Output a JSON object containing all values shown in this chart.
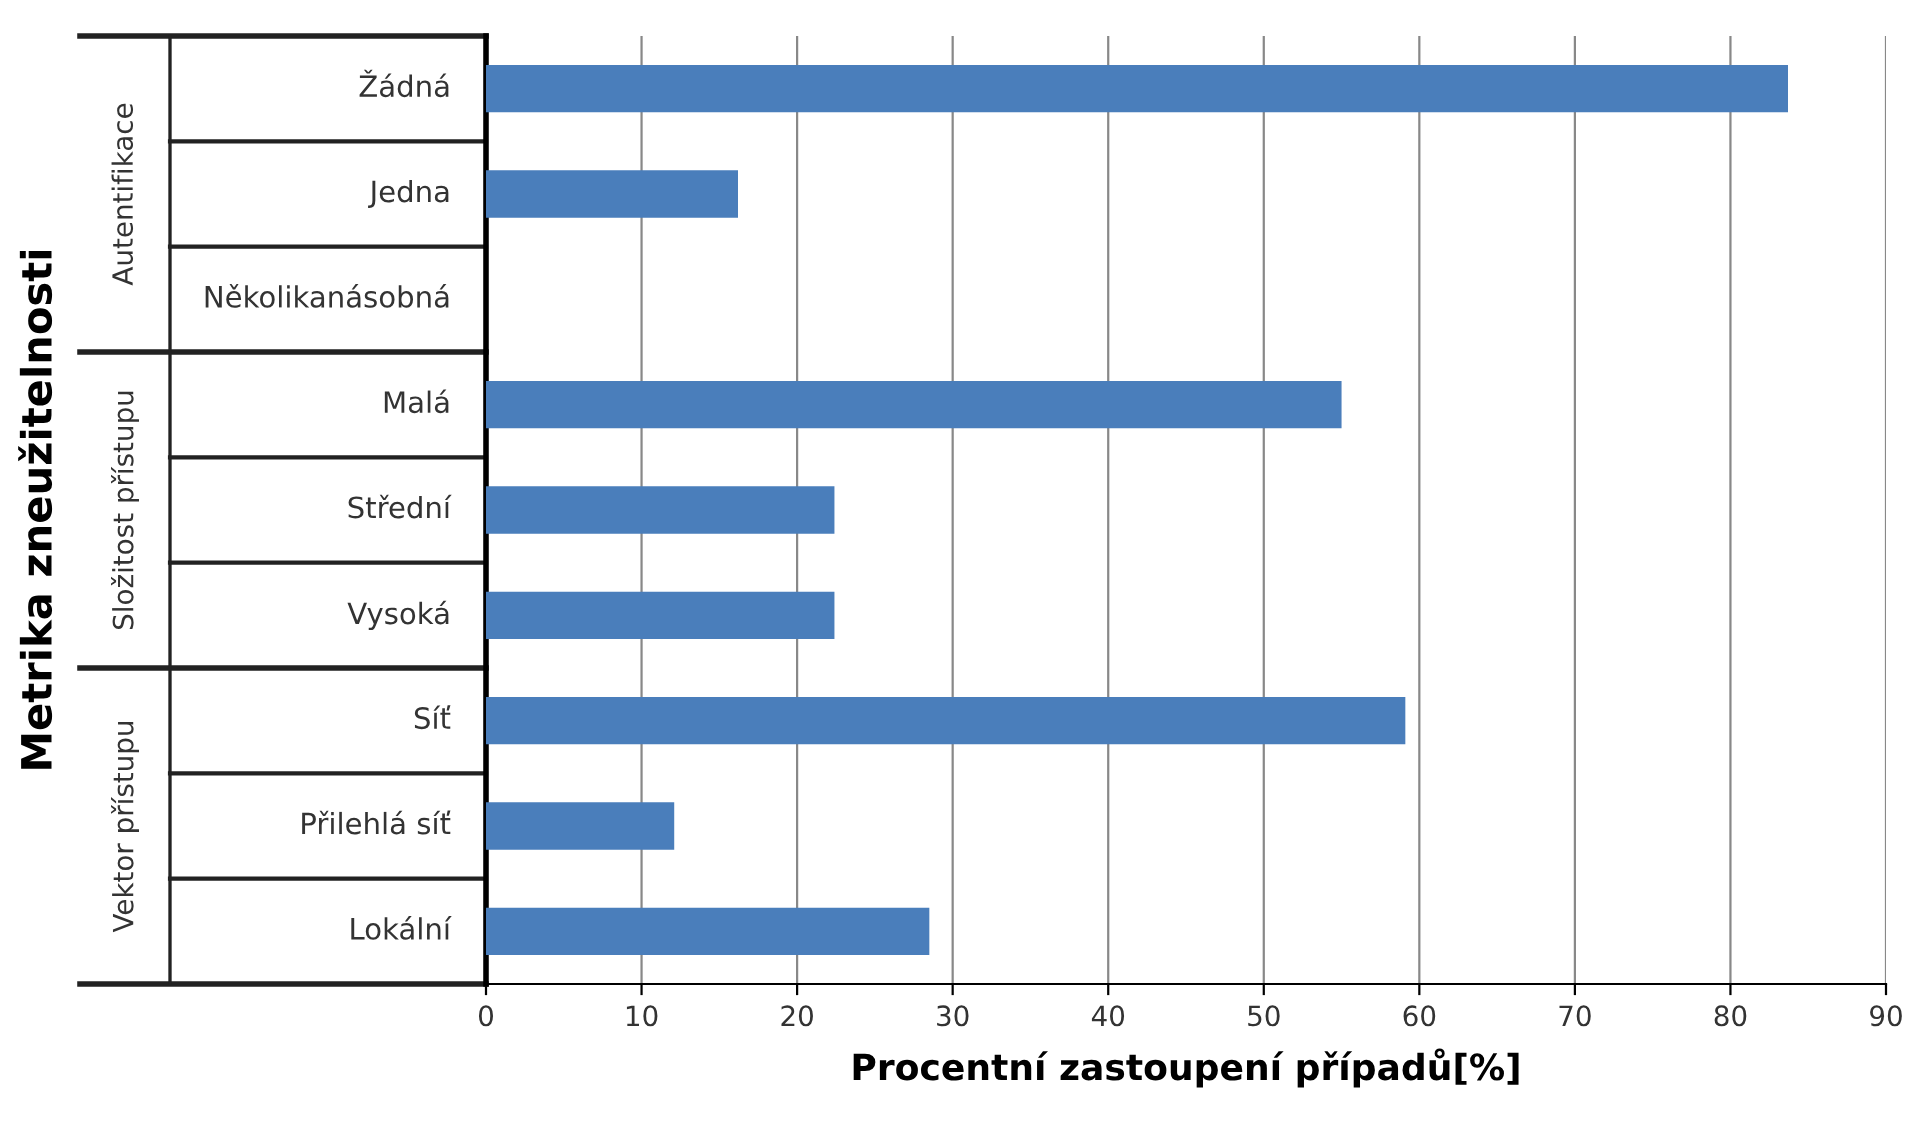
{
  "chart_data": {
    "type": "bar",
    "orientation": "horizontal",
    "categories": [
      "Žádná",
      "Jedna",
      "Několikanásobná",
      "Malá",
      "Střední",
      "Vysoká",
      "Síť",
      "Přilehlá síť",
      "Lokální"
    ],
    "values": [
      83.7,
      16.2,
      null,
      55,
      22.4,
      22.4,
      59.1,
      12.1,
      28.5
    ],
    "color": "#4a7ebb",
    "xlim": [
      0,
      90
    ],
    "xticks": [
      0,
      10,
      20,
      30,
      40,
      50,
      60,
      70,
      80,
      90
    ],
    "grid": "x",
    "xlabel": "Procentní zastoupení případů[%]",
    "ylabel": "Metrika zneužitelnosti",
    "annotations": [
      "Autentifikace",
      "Složitost přístupu",
      "Vektor přístupu"
    ]
  }
}
